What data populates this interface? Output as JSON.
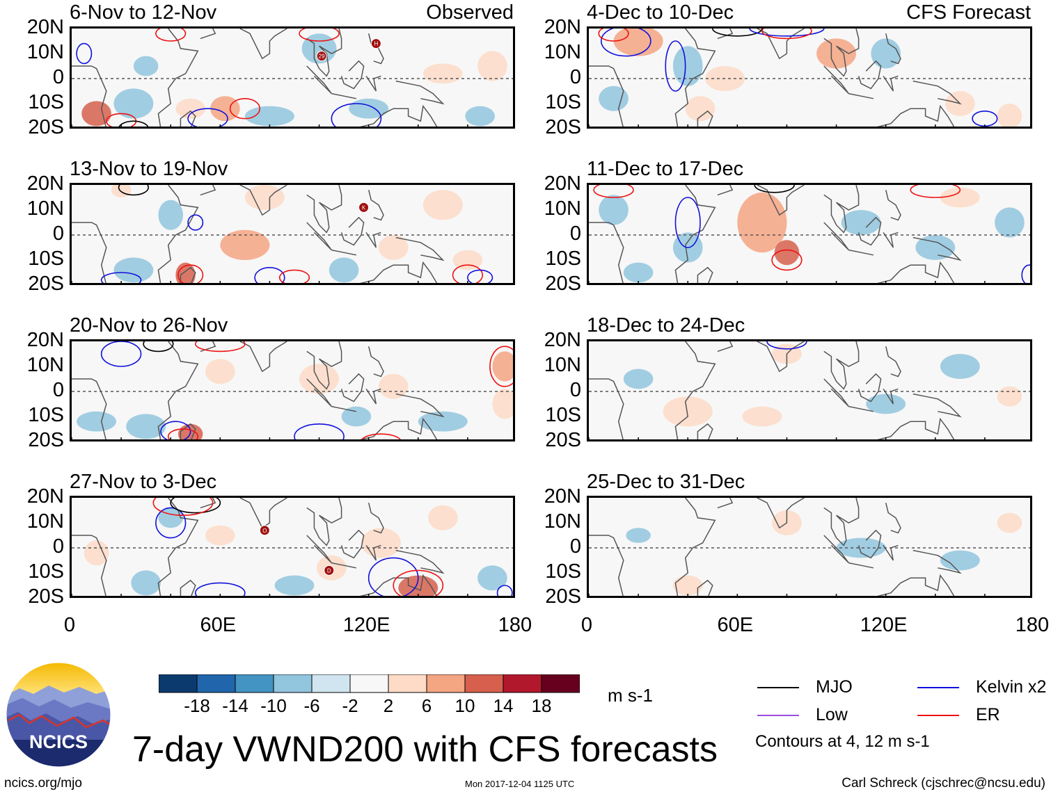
{
  "title": "7-day VWND200 with CFS forecasts",
  "observed_label": "Observed",
  "forecast_label": "CFS Forecast",
  "units": "m s-1",
  "colorbar": {
    "labels": [
      "-18",
      "-14",
      "-10",
      "-6",
      "-2",
      "2",
      "6",
      "10",
      "14",
      "18"
    ],
    "colors": [
      "#0b3a6e",
      "#2166ac",
      "#4393c3",
      "#92c5de",
      "#d1e5f0",
      "#f7f7f7",
      "#fddbc7",
      "#f4a582",
      "#d6604d",
      "#b2182b",
      "#67001f"
    ]
  },
  "legend": {
    "items": [
      {
        "label": "MJO",
        "color": "#000000"
      },
      {
        "label": "Kelvin x2",
        "color": "#1010dd"
      },
      {
        "label": "Low",
        "color": "#9b4dde"
      },
      {
        "label": "ER",
        "color": "#ee1111"
      }
    ],
    "note": "Contours at 4, 12 m s-1"
  },
  "logo_text": "NCICS",
  "footer": {
    "left": "ncics.org/mjo",
    "middle": "Mon 2017-12-04 1125 UTC",
    "right": "Carl Schreck (cjschrec@ncsu.edu)"
  },
  "chart_data": {
    "type": "heatmap",
    "variable": "200-hPa meridional wind anomaly (7-day mean)",
    "x_axis": {
      "range": [
        0,
        180
      ],
      "tick_labels": [
        "0",
        "60E",
        "120E",
        "180"
      ]
    },
    "y_axis": {
      "range": [
        -20,
        20
      ],
      "tick_labels": [
        "20N",
        "10N",
        "0",
        "10S",
        "20S"
      ]
    },
    "observed_panels": [
      {
        "period": "6-Nov to 12-Nov",
        "storm_markers": [
          "29",
          "H"
        ]
      },
      {
        "period": "13-Nov to 19-Nov",
        "storm_markers": [
          "K"
        ]
      },
      {
        "period": "20-Nov to 26-Nov",
        "storm_markers": []
      },
      {
        "period": "27-Nov to 3-Dec",
        "storm_markers": [
          "O",
          "D"
        ]
      }
    ],
    "forecast_panels": [
      {
        "period": "4-Dec to 10-Dec"
      },
      {
        "period": "11-Dec to 17-Dec"
      },
      {
        "period": "18-Dec to 24-Dec"
      },
      {
        "period": "25-Dec to 31-Dec"
      }
    ]
  }
}
